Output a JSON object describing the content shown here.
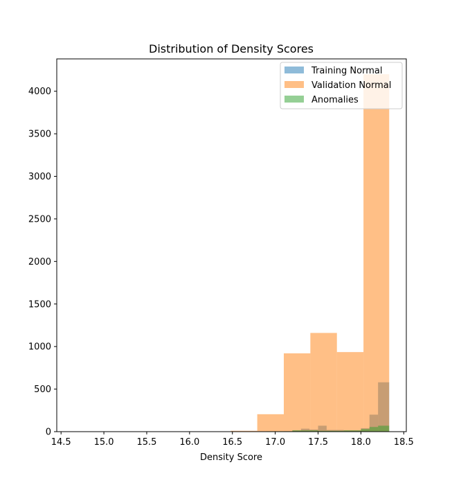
{
  "chart_data": {
    "type": "bar",
    "title": "Distribution of Density Scores",
    "xlabel": "Density Score",
    "ylabel": "",
    "xlim": [
      14.45,
      18.53
    ],
    "ylim": [
      0,
      4380
    ],
    "xticks": [
      "14.5",
      "15.0",
      "15.5",
      "16.0",
      "16.5",
      "17.0",
      "17.5",
      "18.0",
      "18.5"
    ],
    "yticks": [
      "0",
      "500",
      "1000",
      "1500",
      "2000",
      "2500",
      "3000",
      "3500",
      "4000"
    ],
    "legend_position": "top-right",
    "series": [
      {
        "name": "Training Normal",
        "color": "#1f77b4",
        "opacity": 0.5,
        "bins": [
          {
            "x0": 16.5,
            "x1": 16.8,
            "value": 2
          },
          {
            "x0": 17.1,
            "x1": 17.2,
            "value": 5
          },
          {
            "x0": 17.2,
            "x1": 17.3,
            "value": 15
          },
          {
            "x0": 17.3,
            "x1": 17.4,
            "value": 35
          },
          {
            "x0": 17.4,
            "x1": 17.5,
            "value": 25
          },
          {
            "x0": 17.5,
            "x1": 17.6,
            "value": 70
          },
          {
            "x0": 17.6,
            "x1": 17.8,
            "value": 20
          },
          {
            "x0": 17.8,
            "x1": 18.0,
            "value": 15
          },
          {
            "x0": 18.0,
            "x1": 18.1,
            "value": 40
          },
          {
            "x0": 18.1,
            "x1": 18.2,
            "value": 200
          },
          {
            "x0": 18.2,
            "x1": 18.33,
            "value": 580
          }
        ]
      },
      {
        "name": "Validation Normal",
        "color": "#ff7f0e",
        "opacity": 0.5,
        "bins": [
          {
            "x0": 16.48,
            "x1": 16.79,
            "value": 10
          },
          {
            "x0": 16.79,
            "x1": 17.1,
            "value": 205
          },
          {
            "x0": 17.1,
            "x1": 17.41,
            "value": 920
          },
          {
            "x0": 17.41,
            "x1": 17.72,
            "value": 1160
          },
          {
            "x0": 17.72,
            "x1": 18.03,
            "value": 935
          },
          {
            "x0": 18.03,
            "x1": 18.33,
            "value": 4200
          }
        ]
      },
      {
        "name": "Anomalies",
        "color": "#2ca02c",
        "opacity": 0.5,
        "bins": [
          {
            "x0": 16.9,
            "x1": 17.2,
            "value": 5
          },
          {
            "x0": 17.2,
            "x1": 17.5,
            "value": 15
          },
          {
            "x0": 17.5,
            "x1": 17.8,
            "value": 10
          },
          {
            "x0": 17.8,
            "x1": 18.0,
            "value": 15
          },
          {
            "x0": 18.0,
            "x1": 18.1,
            "value": 30
          },
          {
            "x0": 18.1,
            "x1": 18.2,
            "value": 55
          },
          {
            "x0": 18.2,
            "x1": 18.33,
            "value": 70
          }
        ]
      }
    ]
  }
}
